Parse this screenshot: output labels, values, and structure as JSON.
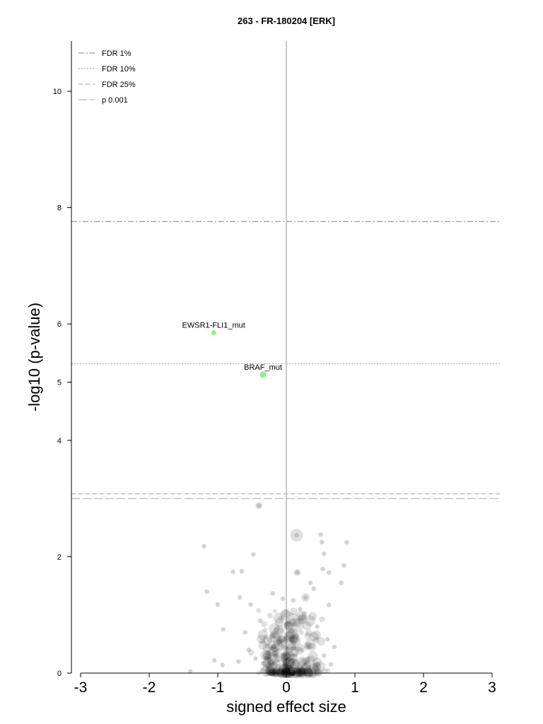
{
  "chart_data": {
    "type": "scatter",
    "title": "263 - FR-180204 [ERK]",
    "xlabel": "signed effect size",
    "ylabel": "-log10 (p-value)",
    "xlim": [
      -3.1,
      3.15
    ],
    "ylim": [
      0,
      10.9
    ],
    "xticks": [
      "-3",
      "-2",
      "-1",
      "0",
      "1",
      "2",
      "3"
    ],
    "xtick_values": [
      -3,
      -2,
      -1,
      0,
      1,
      2,
      3
    ],
    "yticks": [
      "0",
      "2",
      "4",
      "5",
      "6",
      "8",
      "10"
    ],
    "ytick_values": [
      0,
      2,
      4,
      5,
      6,
      8,
      10
    ],
    "grid": false,
    "legend_position": "top-left",
    "legend": [
      {
        "label": "FDR 1%",
        "style": "dashdot"
      },
      {
        "label": "FDR 10%",
        "style": "dotted"
      },
      {
        "label": "FDR 25%",
        "style": "dashed"
      },
      {
        "label": "p 0.001",
        "style": "longdash"
      }
    ],
    "thresholds": [
      {
        "name": "FDR 1%",
        "y": 7.76,
        "style": "dashdot"
      },
      {
        "name": "FDR 10%",
        "y": 5.32,
        "style": "dotted"
      },
      {
        "name": "FDR 25%",
        "y": 3.08,
        "style": "dashed"
      },
      {
        "name": "p 0.001",
        "y": 3.0,
        "style": "longdash"
      }
    ],
    "highlighted": [
      {
        "label": "EWSR1-FLI1_mut",
        "x": -1.06,
        "y": 5.85,
        "color": "#90ee90"
      },
      {
        "label": "BRAF_mut",
        "x": -0.34,
        "y": 5.13,
        "color": "#90ee90"
      }
    ],
    "points": [
      [
        -0.4,
        2.88
      ],
      [
        0.15,
        2.37
      ],
      [
        0.5,
        2.38
      ],
      [
        0.52,
        2.25
      ],
      [
        -0.48,
        2.04
      ],
      [
        0.55,
        2.05
      ],
      [
        -1.2,
        2.18
      ],
      [
        0.88,
        2.25
      ],
      [
        0.16,
        1.73
      ],
      [
        -0.78,
        1.74
      ],
      [
        -0.65,
        1.75
      ],
      [
        0.53,
        1.79
      ],
      [
        0.62,
        1.73
      ],
      [
        0.84,
        1.85
      ],
      [
        -1.16,
        1.4
      ],
      [
        -0.2,
        1.37
      ],
      [
        -0.68,
        1.3
      ],
      [
        0.4,
        1.45
      ],
      [
        0.28,
        1.3
      ],
      [
        -0.05,
        1.28
      ],
      [
        0.2,
        1.1
      ],
      [
        0.62,
        1.17
      ],
      [
        0.8,
        1.55
      ],
      [
        -1.0,
        1.18
      ],
      [
        -0.52,
        1.18
      ],
      [
        -0.92,
        0.75
      ],
      [
        -1.05,
        0.22
      ],
      [
        -0.93,
        0.14
      ],
      [
        -1.4,
        0.03
      ],
      [
        -0.6,
        0.7
      ],
      [
        -0.55,
        0.4
      ],
      [
        -0.7,
        0.2
      ],
      [
        0.6,
        0.58
      ],
      [
        0.7,
        0.45
      ],
      [
        0.35,
        1.55
      ],
      [
        -0.38,
        0.9
      ],
      [
        0.12,
        0.85
      ],
      [
        0.25,
        0.95
      ],
      [
        -0.3,
        0.62
      ],
      [
        0.45,
        0.8
      ],
      [
        0.05,
        0.3
      ],
      [
        0.18,
        0.15
      ],
      [
        0.08,
        0.05
      ],
      [
        -0.1,
        0.4
      ],
      [
        0.3,
        0.2
      ],
      [
        -0.22,
        0.1
      ],
      [
        0.4,
        0.1
      ],
      [
        0.0,
        0.55
      ],
      [
        0.15,
        0.65
      ],
      [
        -0.15,
        0.75
      ],
      [
        0.55,
        0.3
      ],
      [
        -0.45,
        0.25
      ],
      [
        0.65,
        0.15
      ],
      [
        -0.35,
        0.05
      ],
      [
        0.22,
        0.4
      ],
      [
        0.1,
        1.25
      ],
      [
        -0.08,
        0.95
      ],
      [
        0.32,
        0.48
      ],
      [
        -0.28,
        0.35
      ],
      [
        0.48,
        0.05
      ]
    ],
    "highlight_color": "#90ee90",
    "point_color": "#808080"
  }
}
